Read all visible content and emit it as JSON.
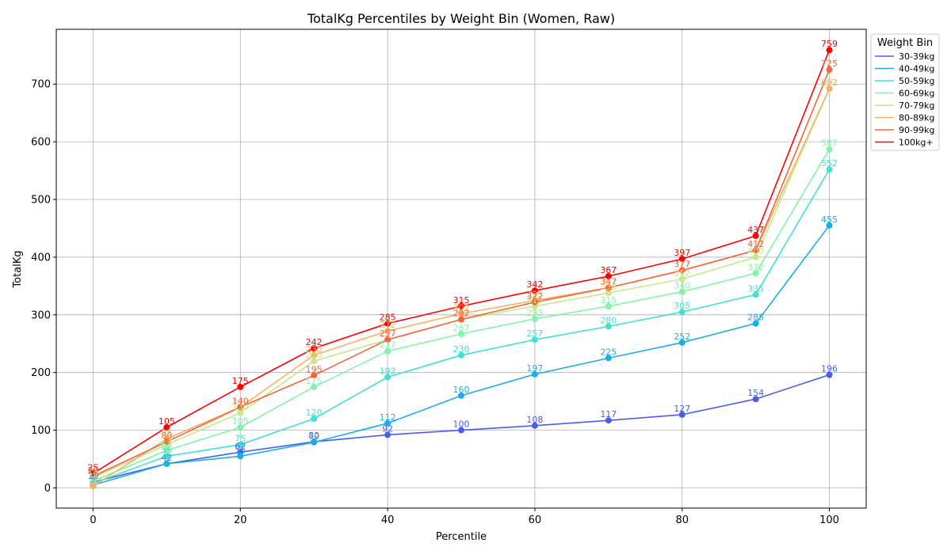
{
  "chart_data": {
    "type": "line",
    "title": "TotalKg Percentiles by Weight Bin (Women, Raw)",
    "xlabel": "Percentile",
    "ylabel": "TotalKg",
    "xlim": [
      -5,
      105
    ],
    "ylim": [
      -35,
      795
    ],
    "xticks": [
      0,
      20,
      40,
      60,
      80,
      100
    ],
    "yticks": [
      0,
      100,
      200,
      300,
      400,
      500,
      600,
      700
    ],
    "grid": true,
    "legend": {
      "title": "Weight Bin",
      "placement": "outside-right-top"
    },
    "x": [
      0,
      10,
      20,
      30,
      40,
      50,
      60,
      70,
      80,
      90,
      100
    ],
    "series": [
      {
        "name": "30-39kg",
        "color": "#4a5ee8",
        "values": [
          10,
          42,
          62,
          80,
          92,
          100,
          108,
          117,
          127,
          154,
          196
        ]
      },
      {
        "name": "40-49kg",
        "color": "#1aaee6",
        "values": [
          5,
          42,
          55,
          79,
          112,
          160,
          197,
          225,
          252,
          285,
          455
        ]
      },
      {
        "name": "50-59kg",
        "color": "#40e2d0",
        "values": [
          8,
          55,
          75,
          120,
          192,
          230,
          257,
          280,
          305,
          335,
          552
        ]
      },
      {
        "name": "60-69kg",
        "color": "#7ef5a8",
        "values": [
          12,
          65,
          105,
          175,
          237,
          267,
          293,
          315,
          340,
          372,
          587
        ]
      },
      {
        "name": "70-79kg",
        "color": "#c4ea86",
        "values": [
          18,
          75,
          130,
          220,
          257,
          292,
          315,
          338,
          362,
          400,
          692
        ]
      },
      {
        "name": "80-89kg",
        "color": "#f7b05f",
        "values": [
          3,
          85,
          140,
          230,
          272,
          302,
          325,
          347,
          377,
          412,
          692
        ]
      },
      {
        "name": "90-99kg",
        "color": "#fa6238",
        "values": [
          20,
          80,
          140,
          195,
          257,
          292,
          322,
          347,
          377,
          412,
          725
        ]
      },
      {
        "name": "100kg+",
        "color": "#ff0000",
        "values": [
          25,
          105,
          175,
          242,
          285,
          315,
          342,
          367,
          397,
          437,
          759
        ]
      }
    ]
  }
}
